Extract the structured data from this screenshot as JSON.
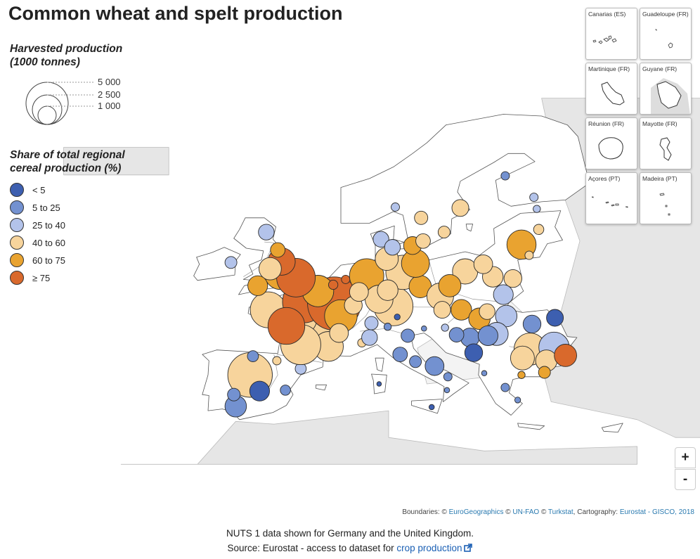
{
  "title": "Common wheat and spelt production",
  "size_legend": {
    "title_line1": "Harvested production",
    "title_line2": "(1000 tonnes)",
    "labels": [
      "5 000",
      "2 500",
      "1 000"
    ]
  },
  "color_legend": {
    "title_line1": "Share of total regional",
    "title_line2": "cereal production (%)",
    "classes": [
      {
        "label": "< 5",
        "color": "#3d5fb0"
      },
      {
        "label": "5 to 25",
        "color": "#7391d0"
      },
      {
        "label": "25 to 40",
        "color": "#b3c3ea"
      },
      {
        "label": "40 to 60",
        "color": "#f7d49c"
      },
      {
        "label": "60 to 75",
        "color": "#e9a330"
      },
      {
        "label": "≥ 75",
        "color": "#d9692c"
      }
    ]
  },
  "insets": [
    {
      "label": "Canarias (ES)"
    },
    {
      "label": "Guadeloupe (FR)"
    },
    {
      "label": "Martinique (FR)"
    },
    {
      "label": "Guyane (FR)"
    },
    {
      "label": "Réunion (FR)"
    },
    {
      "label": "Mayotte (FR)"
    },
    {
      "label": "Açores (PT)"
    },
    {
      "label": "Madeira (PT)"
    }
  ],
  "zoom": {
    "in_label": "+",
    "out_label": "-"
  },
  "attribution": {
    "prefix": "Boundaries: © ",
    "link1": "EuroGeographics",
    "sep1": " © ",
    "link2": "UN-FAO",
    "sep2": " © ",
    "link3": "Turkstat",
    "mid": ", Cartography: ",
    "link4": "Eurostat - GISCO, 2018"
  },
  "footer": {
    "note": "NUTS 1 data shown for Germany and the United Kingdom.",
    "source_prefix": "Source: Eurostat - access to dataset for ",
    "source_link": "crop production"
  },
  "map_data": {
    "bubbles": [
      {
        "lon": -4.5,
        "lat": 41.0,
        "thousand_tonnes": 5600,
        "class": 3
      },
      {
        "lon": -4.2,
        "lat": 43.1,
        "thousand_tonnes": 350,
        "class": 1
      },
      {
        "lon": -1.7,
        "lat": 42.6,
        "thousand_tonnes": 200,
        "class": 3
      },
      {
        "lon": 0.8,
        "lat": 41.7,
        "thousand_tonnes": 350,
        "class": 2
      },
      {
        "lon": -0.8,
        "lat": 39.3,
        "thousand_tonnes": 300,
        "class": 1
      },
      {
        "lon": -6.0,
        "lat": 37.5,
        "thousand_tonnes": 1300,
        "class": 1
      },
      {
        "lon": -3.5,
        "lat": 39.2,
        "thousand_tonnes": 1100,
        "class": 0
      },
      {
        "lon": -6.2,
        "lat": 38.8,
        "thousand_tonnes": 450,
        "class": 1
      },
      {
        "lon": 2.9,
        "lat": 47.2,
        "thousand_tonnes": 7800,
        "class": 3
      },
      {
        "lon": 0.3,
        "lat": 47.6,
        "thousand_tonnes": 5200,
        "class": 3
      },
      {
        "lon": 3.7,
        "lat": 44.2,
        "thousand_tonnes": 2500,
        "class": 3
      },
      {
        "lon": 0.8,
        "lat": 44.4,
        "thousand_tonnes": 4500,
        "class": 3
      },
      {
        "lon": -2.6,
        "lat": 48.3,
        "thousand_tonnes": 3600,
        "class": 3
      },
      {
        "lon": 1.1,
        "lat": 49.2,
        "thousand_tonnes": 5000,
        "class": 5
      },
      {
        "lon": 4.3,
        "lat": 49.0,
        "thousand_tonnes": 8000,
        "class": 5
      },
      {
        "lon": 2.6,
        "lat": 50.4,
        "thousand_tonnes": 2800,
        "class": 4
      },
      {
        "lon": -0.7,
        "lat": 46.5,
        "thousand_tonnes": 3800,
        "class": 5
      },
      {
        "lon": 5.0,
        "lat": 47.6,
        "thousand_tonnes": 3000,
        "class": 4
      },
      {
        "lon": 6.3,
        "lat": 48.8,
        "thousand_tonnes": 900,
        "class": 3
      },
      {
        "lon": 7.2,
        "lat": 44.6,
        "thousand_tonnes": 200,
        "class": 3
      },
      {
        "lon": 4.8,
        "lat": 45.7,
        "thousand_tonnes": 1000,
        "class": 3
      },
      {
        "lon": -1.3,
        "lat": 52.4,
        "thousand_tonnes": 3000,
        "class": 4
      },
      {
        "lon": 0.3,
        "lat": 51.9,
        "thousand_tonnes": 4200,
        "class": 5
      },
      {
        "lon": -1.2,
        "lat": 53.7,
        "thousand_tonnes": 2100,
        "class": 5
      },
      {
        "lon": -2.4,
        "lat": 52.9,
        "thousand_tonnes": 1400,
        "class": 3
      },
      {
        "lon": -3.7,
        "lat": 51.0,
        "thousand_tonnes": 1100,
        "class": 4
      },
      {
        "lon": -2.8,
        "lat": 57.0,
        "thousand_tonnes": 700,
        "class": 2
      },
      {
        "lon": -1.6,
        "lat": 55.0,
        "thousand_tonnes": 600,
        "class": 4
      },
      {
        "lon": -6.5,
        "lat": 53.6,
        "thousand_tonnes": 400,
        "class": 2
      },
      {
        "lon": 5.5,
        "lat": 51.7,
        "thousand_tonnes": 200,
        "class": 5
      },
      {
        "lon": 4.2,
        "lat": 51.1,
        "thousand_tonnes": 250,
        "class": 5
      },
      {
        "lon": 10.5,
        "lat": 48.7,
        "thousand_tonnes": 4300,
        "class": 3
      },
      {
        "lon": 11.5,
        "lat": 52.5,
        "thousand_tonnes": 3300,
        "class": 3
      },
      {
        "lon": 7.7,
        "lat": 52.1,
        "thousand_tonnes": 3300,
        "class": 4
      },
      {
        "lon": 9.0,
        "lat": 49.5,
        "thousand_tonnes": 2200,
        "class": 3
      },
      {
        "lon": 13.3,
        "lat": 50.9,
        "thousand_tonnes": 1400,
        "class": 4
      },
      {
        "lon": 12.8,
        "lat": 53.5,
        "thousand_tonnes": 2200,
        "class": 4
      },
      {
        "lon": 9.8,
        "lat": 54.0,
        "thousand_tonnes": 1500,
        "class": 3
      },
      {
        "lon": 9.9,
        "lat": 50.5,
        "thousand_tonnes": 1200,
        "class": 3
      },
      {
        "lon": 6.9,
        "lat": 50.3,
        "thousand_tonnes": 1000,
        "class": 3
      },
      {
        "lon": 15.4,
        "lat": 49.8,
        "thousand_tonnes": 2000,
        "class": 3
      },
      {
        "lon": 18.0,
        "lat": 52.6,
        "thousand_tonnes": 1800,
        "class": 3
      },
      {
        "lon": 20.9,
        "lat": 52.0,
        "thousand_tonnes": 1200,
        "class": 3
      },
      {
        "lon": 16.4,
        "lat": 51.0,
        "thousand_tonnes": 1400,
        "class": 4
      },
      {
        "lon": 23.0,
        "lat": 51.8,
        "thousand_tonnes": 900,
        "class": 3
      },
      {
        "lon": 22.0,
        "lat": 50.0,
        "thousand_tonnes": 1100,
        "class": 2
      },
      {
        "lon": 19.9,
        "lat": 53.4,
        "thousand_tonnes": 1000,
        "class": 3
      },
      {
        "lon": 17.6,
        "lat": 48.3,
        "thousand_tonnes": 1200,
        "class": 4
      },
      {
        "lon": 15.6,
        "lat": 48.3,
        "thousand_tonnes": 800,
        "class": 3
      },
      {
        "lon": 19.5,
        "lat": 47.3,
        "thousand_tonnes": 1300,
        "class": 4
      },
      {
        "lon": 20.3,
        "lat": 48.1,
        "thousand_tonnes": 700,
        "class": 3
      },
      {
        "lon": 22.3,
        "lat": 47.6,
        "thousand_tonnes": 1300,
        "class": 2
      },
      {
        "lon": 21.3,
        "lat": 45.6,
        "thousand_tonnes": 1500,
        "class": 2
      },
      {
        "lon": 18.5,
        "lat": 45.2,
        "thousand_tonnes": 1000,
        "class": 1
      },
      {
        "lon": 24.8,
        "lat": 43.9,
        "thousand_tonnes": 2900,
        "class": 3
      },
      {
        "lon": 27.3,
        "lat": 44.1,
        "thousand_tonnes": 2600,
        "class": 2
      },
      {
        "lon": 24.0,
        "lat": 42.9,
        "thousand_tonnes": 1600,
        "class": 3
      },
      {
        "lon": 26.5,
        "lat": 42.6,
        "thousand_tonnes": 1300,
        "class": 3
      },
      {
        "lon": 28.5,
        "lat": 43.2,
        "thousand_tonnes": 1400,
        "class": 5
      },
      {
        "lon": 25.0,
        "lat": 46.7,
        "thousand_tonnes": 900,
        "class": 1
      },
      {
        "lon": 27.4,
        "lat": 47.4,
        "thousand_tonnes": 800,
        "class": 0
      },
      {
        "lon": 23.9,
        "lat": 41.0,
        "thousand_tonnes": 150,
        "class": 4
      },
      {
        "lon": 26.3,
        "lat": 41.3,
        "thousand_tonnes": 400,
        "class": 4
      },
      {
        "lon": 20.4,
        "lat": 45.4,
        "thousand_tonnes": 1100,
        "class": 1
      },
      {
        "lon": 17.1,
        "lat": 45.5,
        "thousand_tonnes": 600,
        "class": 1
      },
      {
        "lon": 18.9,
        "lat": 43.5,
        "thousand_tonnes": 900,
        "class": 0
      },
      {
        "lon": 8.0,
        "lat": 45.2,
        "thousand_tonnes": 700,
        "class": 2
      },
      {
        "lon": 12.0,
        "lat": 45.4,
        "thousand_tonnes": 500,
        "class": 1
      },
      {
        "lon": 11.2,
        "lat": 43.3,
        "thousand_tonnes": 600,
        "class": 1
      },
      {
        "lon": 14.8,
        "lat": 42.0,
        "thousand_tonnes": 1000,
        "class": 1
      },
      {
        "lon": 12.8,
        "lat": 42.5,
        "thousand_tonnes": 400,
        "class": 1
      },
      {
        "lon": 16.2,
        "lat": 40.8,
        "thousand_tonnes": 200,
        "class": 1
      },
      {
        "lon": 9.9,
        "lat": 46.4,
        "thousand_tonnes": 150,
        "class": 1
      },
      {
        "lon": 8.2,
        "lat": 46.8,
        "thousand_tonnes": 500,
        "class": 2
      },
      {
        "lon": 10.9,
        "lat": 47.5,
        "thousand_tonnes": 100,
        "class": 0
      },
      {
        "lon": 13.7,
        "lat": 46.2,
        "thousand_tonnes": 80,
        "class": 1
      },
      {
        "lon": 15.9,
        "lat": 46.3,
        "thousand_tonnes": 150,
        "class": 2
      },
      {
        "lon": 12.5,
        "lat": 55.5,
        "thousand_tonnes": 900,
        "class": 4
      },
      {
        "lon": 9.2,
        "lat": 56.2,
        "thousand_tonnes": 700,
        "class": 2
      },
      {
        "lon": 10.4,
        "lat": 55.3,
        "thousand_tonnes": 700,
        "class": 2
      },
      {
        "lon": 13.6,
        "lat": 56.0,
        "thousand_tonnes": 600,
        "class": 3
      },
      {
        "lon": 15.8,
        "lat": 57.0,
        "thousand_tonnes": 400,
        "class": 3
      },
      {
        "lon": 17.5,
        "lat": 59.7,
        "thousand_tonnes": 800,
        "class": 3
      },
      {
        "lon": 13.4,
        "lat": 58.6,
        "thousand_tonnes": 500,
        "class": 3
      },
      {
        "lon": 23.9,
        "lat": 55.6,
        "thousand_tonnes": 2400,
        "class": 4
      },
      {
        "lon": 25.7,
        "lat": 57.3,
        "thousand_tonnes": 300,
        "class": 3
      },
      {
        "lon": 25.5,
        "lat": 59.6,
        "thousand_tonnes": 150,
        "class": 2
      },
      {
        "lon": 25.2,
        "lat": 60.9,
        "thousand_tonnes": 200,
        "class": 2
      },
      {
        "lon": 22.2,
        "lat": 63.3,
        "thousand_tonnes": 200,
        "class": 1
      },
      {
        "lon": 10.7,
        "lat": 59.8,
        "thousand_tonnes": 200,
        "class": 2
      },
      {
        "lon": 24.7,
        "lat": 54.4,
        "thousand_tonnes": 200,
        "class": 3
      },
      {
        "lon": 23.5,
        "lat": 38.2,
        "thousand_tonnes": 100,
        "class": 1
      },
      {
        "lon": 22.2,
        "lat": 39.6,
        "thousand_tonnes": 200,
        "class": 1
      },
      {
        "lon": 20.0,
        "lat": 41.2,
        "thousand_tonnes": 80,
        "class": 1
      },
      {
        "lon": 16.1,
        "lat": 39.3,
        "thousand_tonnes": 80,
        "class": 1
      },
      {
        "lon": 14.5,
        "lat": 37.4,
        "thousand_tonnes": 80,
        "class": 0
      },
      {
        "lon": 9.0,
        "lat": 40.0,
        "thousand_tonnes": 60,
        "class": 0
      }
    ]
  }
}
